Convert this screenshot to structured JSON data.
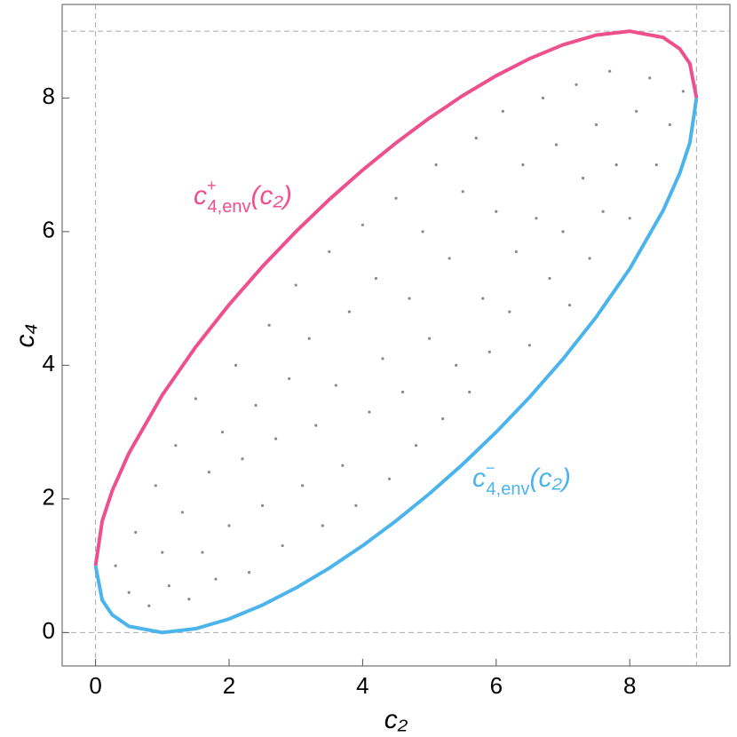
{
  "chart_data": {
    "type": "scatter",
    "x_label": "c₂",
    "y_label": "c₄",
    "xlim": [
      -0.5,
      9.5
    ],
    "ylim": [
      -0.5,
      9.4
    ],
    "xticks": [
      0,
      2,
      4,
      6,
      8
    ],
    "yticks": [
      0,
      2,
      4,
      6,
      8
    ],
    "xlines": [
      0,
      9
    ],
    "ylines": [
      0,
      9
    ],
    "points": {
      "color": "#8a8a8a",
      "x": [
        0.3,
        0.5,
        0.6,
        0.8,
        0.9,
        1.0,
        1.1,
        1.2,
        1.3,
        1.4,
        1.5,
        1.6,
        1.7,
        1.8,
        1.9,
        2.0,
        2.1,
        2.2,
        2.3,
        2.4,
        2.5,
        2.6,
        2.7,
        2.8,
        2.9,
        3.0,
        3.1,
        3.2,
        3.3,
        3.4,
        3.5,
        3.6,
        3.7,
        3.8,
        3.9,
        4.0,
        4.1,
        4.2,
        4.3,
        4.4,
        4.5,
        4.6,
        4.7,
        4.8,
        4.9,
        5.0,
        5.1,
        5.2,
        5.3,
        5.4,
        5.5,
        5.6,
        5.7,
        5.8,
        5.9,
        6.0,
        6.1,
        6.2,
        6.3,
        6.4,
        6.5,
        6.6,
        6.7,
        6.8,
        6.9,
        7.0,
        7.1,
        7.2,
        7.3,
        7.4,
        7.5,
        7.6,
        7.7,
        7.8,
        8.0,
        8.1,
        8.3,
        8.4,
        8.6,
        8.8
      ],
      "values": [
        1.0,
        0.6,
        1.5,
        0.4,
        2.2,
        1.2,
        0.7,
        2.8,
        1.8,
        0.5,
        3.5,
        1.2,
        2.4,
        0.8,
        3.0,
        1.6,
        4.0,
        2.6,
        0.9,
        3.4,
        1.9,
        4.6,
        2.9,
        1.3,
        3.8,
        5.2,
        2.2,
        4.4,
        3.1,
        1.6,
        5.7,
        3.7,
        2.5,
        4.8,
        1.9,
        6.1,
        3.3,
        5.3,
        4.1,
        2.3,
        6.5,
        3.6,
        5.0,
        2.8,
        6.0,
        4.4,
        7.0,
        3.2,
        5.6,
        4.0,
        6.6,
        3.6,
        7.4,
        5.0,
        4.2,
        6.3,
        7.8,
        4.8,
        5.7,
        7.0,
        4.3,
        6.2,
        8.0,
        5.3,
        7.3,
        6.0,
        4.9,
        8.2,
        6.8,
        5.6,
        7.6,
        6.3,
        8.4,
        7.0,
        6.2,
        7.8,
        8.3,
        7.0,
        7.6,
        8.1
      ]
    },
    "curves": [
      {
        "symbol": "c",
        "sup": "+",
        "sub": "4,env",
        "arg": "(c₂)",
        "color": "#ee4f8d",
        "x": [
          0,
          0.1,
          0.25,
          0.5,
          1,
          1.5,
          2,
          2.5,
          3,
          3.5,
          4,
          4.5,
          5,
          5.5,
          6,
          6.5,
          7,
          7.5,
          8,
          8.5,
          8.75,
          8.9,
          9
        ],
        "values": [
          1,
          1.671,
          2.124,
          2.685,
          3.556,
          4.275,
          4.907,
          5.478,
          6.0,
          6.48,
          6.922,
          7.328,
          7.7,
          8.036,
          8.333,
          8.589,
          8.796,
          8.942,
          9.0,
          8.907,
          8.735,
          8.515,
          8
        ]
      },
      {
        "symbol": "c",
        "sup": "−",
        "sub": "4,env",
        "arg": "(c₂)",
        "color": "#4cb4ec",
        "x": [
          0,
          0.1,
          0.25,
          0.5,
          1,
          1.5,
          2,
          2.5,
          3,
          3.5,
          4,
          4.5,
          5,
          5.5,
          6,
          6.5,
          7,
          7.5,
          8,
          8.5,
          8.75,
          8.9,
          9
        ],
        "values": [
          1,
          0.485,
          0.265,
          0.093,
          0.0,
          0.058,
          0.204,
          0.411,
          0.667,
          0.964,
          1.3,
          1.672,
          2.078,
          2.52,
          3.0,
          3.522,
          4.093,
          4.725,
          5.444,
          6.315,
          6.876,
          7.329,
          8
        ]
      }
    ]
  }
}
